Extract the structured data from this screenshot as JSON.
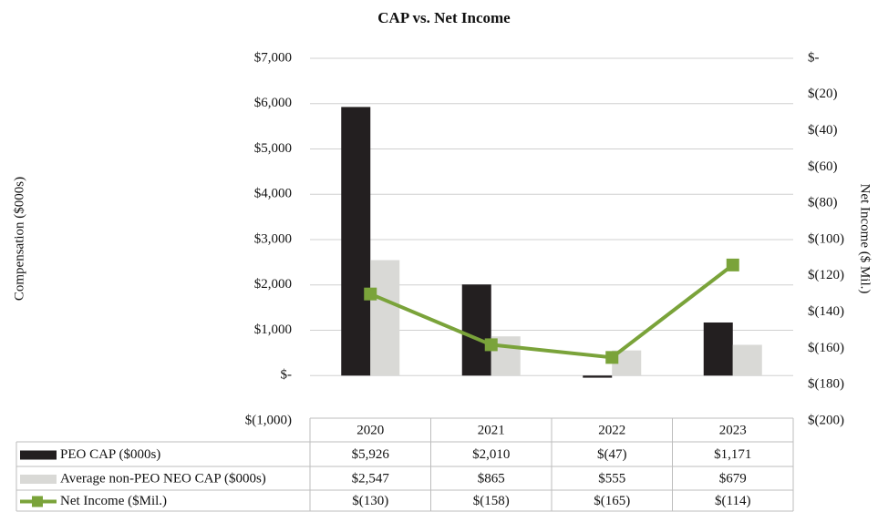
{
  "chart_data": {
    "type": "bar",
    "title": "CAP vs. Net Income",
    "y_label": "Compensation ($000s)",
    "y2_label": "Net Income ($ Mil.)",
    "categories": [
      "2020",
      "2021",
      "2022",
      "2023"
    ],
    "series": [
      {
        "name": "PEO CAP ($000s)",
        "color": "#231f20",
        "values": [
          5926,
          2010,
          -47,
          1171
        ],
        "value_labels": [
          "$5,926",
          "$2,010",
          "$(47)",
          "$1,171"
        ]
      },
      {
        "name": "Average non-PEO NEO CAP ($000s)",
        "color": "#d9d9d6",
        "values": [
          2547,
          865,
          555,
          679
        ],
        "value_labels": [
          "$2,547",
          "$865",
          "$555",
          "$679"
        ]
      },
      {
        "name": "Net Income ($Mil.)",
        "color": "#7aa33a",
        "axis": "y2",
        "type": "line",
        "values": [
          -130,
          -158,
          -165,
          -114
        ],
        "value_labels": [
          "$(130)",
          "$(158)",
          "$(165)",
          "$(114)"
        ]
      }
    ],
    "ylim": [
      -1000,
      7000
    ],
    "yticks": [
      {
        "value": 7000,
        "label": "$7,000"
      },
      {
        "value": 6000,
        "label": "$6,000"
      },
      {
        "value": 5000,
        "label": "$5,000"
      },
      {
        "value": 4000,
        "label": "$4,000"
      },
      {
        "value": 3000,
        "label": "$3,000"
      },
      {
        "value": 2000,
        "label": "$2,000"
      },
      {
        "value": 1000,
        "label": "$1,000"
      },
      {
        "value": 0,
        "label": "$-"
      },
      {
        "value": -1000,
        "label": "$(1,000)"
      }
    ],
    "y2lim": [
      -200,
      0
    ],
    "y2ticks": [
      {
        "value": 0,
        "label": "$-"
      },
      {
        "value": -20,
        "label": "$(20)"
      },
      {
        "value": -40,
        "label": "$(40)"
      },
      {
        "value": -60,
        "label": "$(60)"
      },
      {
        "value": -80,
        "label": "$(80)"
      },
      {
        "value": -100,
        "label": "$(100)"
      },
      {
        "value": -120,
        "label": "$(120)"
      },
      {
        "value": -140,
        "label": "$(140)"
      },
      {
        "value": -160,
        "label": "$(160)"
      },
      {
        "value": -180,
        "label": "$(180)"
      },
      {
        "value": -200,
        "label": "$(200)"
      }
    ],
    "grid": true
  }
}
